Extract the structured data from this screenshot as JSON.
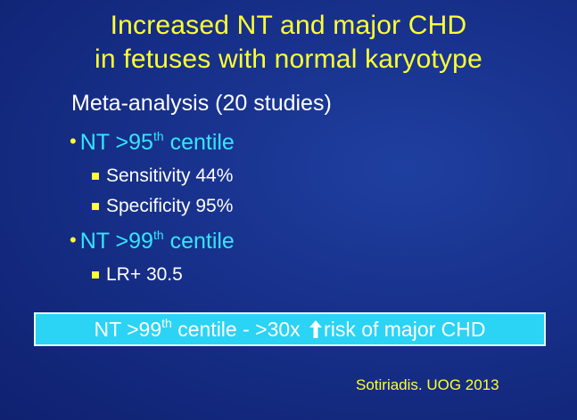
{
  "title": {
    "line1": "Increased NT and major CHD",
    "line2": "in fetuses with normal karyotype"
  },
  "subhead": "Meta-analysis (20 studies)",
  "bullets": [
    {
      "pre": "NT >95",
      "sup": "th",
      "post": " centile",
      "sub": [
        "Sensitivity 44%",
        "Specificity 95%"
      ]
    },
    {
      "pre": "NT >99",
      "sup": "th",
      "post": " centile",
      "sub": [
        "LR+ 30.5"
      ]
    }
  ],
  "callout": {
    "pre": "NT >99",
    "sup": "th",
    "mid": " centile - >30x ",
    "icon": "up-arrow-icon",
    "post": "risk of major CHD"
  },
  "citation": "Sotiriadis. UOG 2013",
  "colors": {
    "title": "#ffff33",
    "bullet_heading": "#33e6ff",
    "callout_bg": "#2bd3f5",
    "background": "#17308a"
  }
}
